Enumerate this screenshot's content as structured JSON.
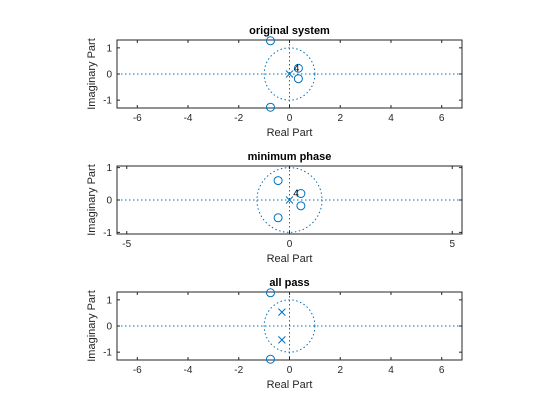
{
  "figure": {
    "background": "#ffffff",
    "axes_color": "#262626",
    "marker_color": "#0072bd"
  },
  "chart_data": [
    {
      "type": "scatter",
      "title": "original system",
      "xlabel": "Real Part",
      "ylabel": "Imaginary Part",
      "xlim": [
        -6.8,
        6.8
      ],
      "ylim": [
        -1.3,
        1.3
      ],
      "xticks": [
        -6,
        -4,
        -2,
        0,
        2,
        4,
        6
      ],
      "yticks": [
        -1,
        0,
        1
      ],
      "unit_circle": true,
      "axis_lines": true,
      "grid": false,
      "zeros": [
        {
          "x": -0.75,
          "y": 1.27
        },
        {
          "x": -0.75,
          "y": -1.27
        },
        {
          "x": 0.35,
          "y": 0.22
        },
        {
          "x": 0.35,
          "y": -0.18
        }
      ],
      "poles": [
        {
          "x": 0,
          "y": 0,
          "multiplicity": 4
        }
      ],
      "multiplicity_label": {
        "text": "4",
        "x": 0.28,
        "y": 0.25
      }
    },
    {
      "type": "scatter",
      "title": "minimum phase",
      "xlabel": "Real Part",
      "ylabel": "Imaginary Part",
      "xlim": [
        -5.3,
        5.3
      ],
      "ylim": [
        -1.05,
        1.05
      ],
      "xticks": [
        -5,
        0,
        5
      ],
      "yticks": [
        -1,
        0,
        1
      ],
      "unit_circle": true,
      "axis_lines": true,
      "grid": false,
      "zeros": [
        {
          "x": -0.35,
          "y": 0.6
        },
        {
          "x": -0.35,
          "y": -0.55
        },
        {
          "x": 0.35,
          "y": 0.2
        },
        {
          "x": 0.35,
          "y": -0.18
        }
      ],
      "poles": [
        {
          "x": 0,
          "y": 0,
          "multiplicity": 4
        }
      ],
      "multiplicity_label": {
        "text": "4",
        "x": 0.2,
        "y": 0.23
      }
    },
    {
      "type": "scatter",
      "title": "all pass",
      "xlabel": "Real Part",
      "ylabel": "Imaginary Part",
      "xlim": [
        -6.8,
        6.8
      ],
      "ylim": [
        -1.3,
        1.3
      ],
      "xticks": [
        -6,
        -4,
        -2,
        0,
        2,
        4,
        6
      ],
      "yticks": [
        -1,
        0,
        1
      ],
      "unit_circle": true,
      "axis_lines": true,
      "grid": false,
      "zeros": [
        {
          "x": -0.75,
          "y": 1.27
        },
        {
          "x": -0.75,
          "y": -1.27
        }
      ],
      "poles": [
        {
          "x": -0.3,
          "y": 0.53,
          "multiplicity": 1
        },
        {
          "x": -0.3,
          "y": -0.53,
          "multiplicity": 1
        }
      ]
    }
  ]
}
